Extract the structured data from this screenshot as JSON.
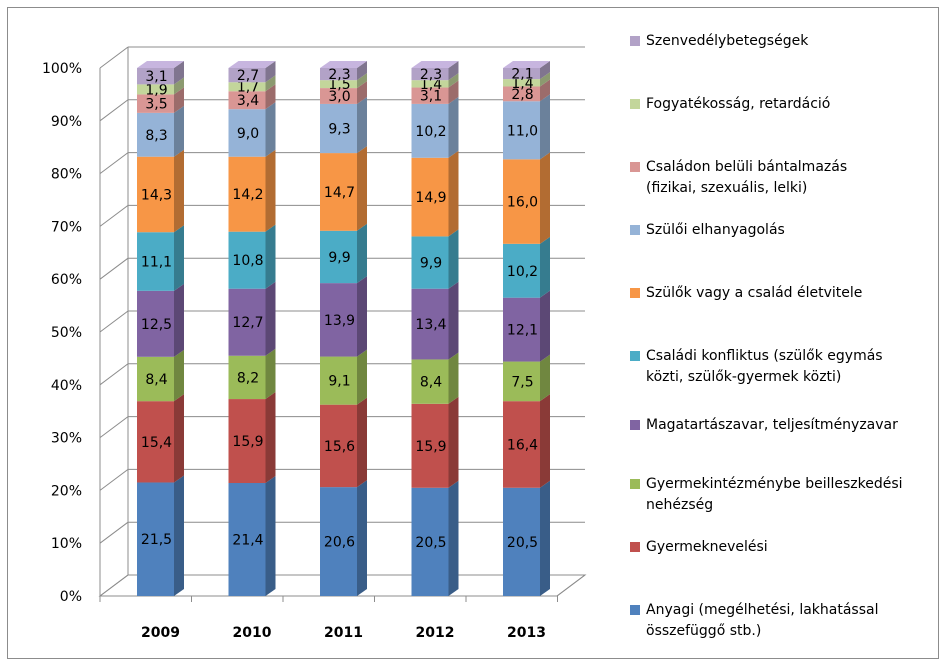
{
  "chart_data": {
    "type": "bar",
    "stacked": true,
    "percent": true,
    "categories": [
      "2009",
      "2010",
      "2011",
      "2012",
      "2013"
    ],
    "ylim": [
      0,
      100
    ],
    "yticks": [
      "0%",
      "10%",
      "20%",
      "30%",
      "40%",
      "50%",
      "60%",
      "70%",
      "80%",
      "90%",
      "100%"
    ],
    "grid": true,
    "legend_position": "right",
    "series": [
      {
        "name": "Anyagi (megélhetési, lakhatással\nösszefüggő stb.)",
        "color": "#4F81BD",
        "values": [
          21.5,
          21.4,
          20.6,
          20.5,
          20.5
        ],
        "labels": [
          "21,5",
          "21,4",
          "20,6",
          "20,5",
          "20,5"
        ]
      },
      {
        "name": "Gyermeknevelési",
        "color": "#C0504D",
        "values": [
          15.4,
          15.9,
          15.6,
          15.9,
          16.4
        ],
        "labels": [
          "15,4",
          "15,9",
          "15,6",
          "15,9",
          "16,4"
        ]
      },
      {
        "name": "Gyermekintézménybe beilleszkedési\nnehézség",
        "color": "#9BBB59",
        "values": [
          8.4,
          8.2,
          9.1,
          8.4,
          7.5
        ],
        "labels": [
          "8,4",
          "8,2",
          "9,1",
          "8,4",
          "7,5"
        ]
      },
      {
        "name": "Magatartászavar, teljesítményzavar",
        "color": "#8064A2",
        "values": [
          12.5,
          12.7,
          13.9,
          13.4,
          12.1
        ],
        "labels": [
          "12,5",
          "12,7",
          "13,9",
          "13,4",
          "12,1"
        ]
      },
      {
        "name": "Családi konfliktus (szülők egymás\nközti, szülők-gyermek közti)",
        "color": "#4BACC6",
        "values": [
          11.1,
          10.8,
          9.9,
          9.9,
          10.2
        ],
        "labels": [
          "11,1",
          "10,8",
          "9,9",
          "9,9",
          "10,2"
        ]
      },
      {
        "name": "Szülők vagy a család életvitele",
        "color": "#F79646",
        "values": [
          14.3,
          14.2,
          14.7,
          14.9,
          16.0
        ],
        "labels": [
          "14,3",
          "14,2",
          "14,7",
          "14,9",
          "16,0"
        ]
      },
      {
        "name": "Szülői elhanyagolás",
        "color": "#95B3D7",
        "values": [
          8.3,
          9.0,
          9.3,
          10.2,
          11.0
        ],
        "labels": [
          "8,3",
          "9,0",
          "9,3",
          "10,2",
          "11,0"
        ]
      },
      {
        "name": "Családon belüli bántalmazás\n(fizikai, szexuális, lelki)",
        "color": "#D99694",
        "values": [
          3.5,
          3.4,
          3.0,
          3.1,
          2.8
        ],
        "labels": [
          "3,5",
          "3,4",
          "3,0",
          "3,1",
          "2,8"
        ]
      },
      {
        "name": "Fogyatékosság, retardáció",
        "color": "#C3D69B",
        "values": [
          1.9,
          1.7,
          1.5,
          1.4,
          1.4
        ],
        "labels": [
          "1,9",
          "1,7",
          "1,5",
          "1,4",
          "1,4"
        ]
      },
      {
        "name": "Szenvedélybetegségek",
        "color": "#B2A2C7",
        "values": [
          3.1,
          2.7,
          2.3,
          2.3,
          2.1
        ],
        "labels": [
          "3,1",
          "2,7",
          "2,3",
          "2,3",
          "2,1"
        ]
      }
    ]
  }
}
